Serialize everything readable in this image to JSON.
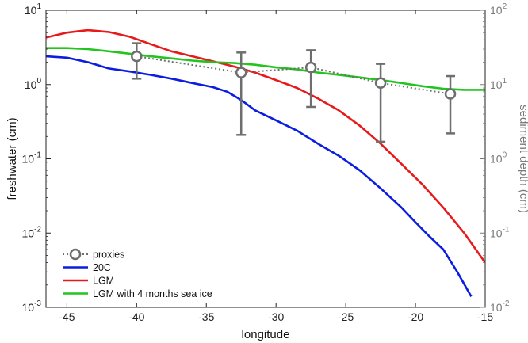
{
  "chart_data": {
    "type": "line",
    "xlabel": "longitude",
    "ylabel": "freshwater (cm)",
    "ylabel_right": "sediment depth (cm)",
    "xlim": [
      -46.5,
      -15
    ],
    "ylim": [
      0.001,
      10
    ],
    "ylim_right": [
      0.01,
      100
    ],
    "yscale": "log",
    "grid": false,
    "legend_position": "bottom-left",
    "x_ticks": [
      -45,
      -40,
      -35,
      -30,
      -25,
      -20,
      -15
    ],
    "x_tick_labels": [
      "-45",
      "-40",
      "-35",
      "-30",
      "-25",
      "-20",
      "-15"
    ],
    "y_ticks": [
      0.001,
      0.01,
      0.1,
      1,
      10
    ],
    "y_tick_labels": [
      {
        "base": "10",
        "exp": "-3"
      },
      {
        "base": "10",
        "exp": "-2"
      },
      {
        "base": "10",
        "exp": "-1"
      },
      {
        "base": "10",
        "exp": "0"
      },
      {
        "base": "10",
        "exp": "1"
      }
    ],
    "y_ticks_right": [
      0.01,
      0.1,
      1,
      10,
      100
    ],
    "y_tick_labels_right": [
      {
        "base": "10",
        "exp": "-2"
      },
      {
        "base": "10",
        "exp": "-1"
      },
      {
        "base": "10",
        "exp": "0"
      },
      {
        "base": "10",
        "exp": "1"
      },
      {
        "base": "10",
        "exp": "2"
      }
    ],
    "series": [
      {
        "name": "20C",
        "color": "#0b1ee0",
        "x": [
          -46.5,
          -45,
          -43.5,
          -42,
          -40.5,
          -39,
          -37.5,
          -36,
          -34.5,
          -33.5,
          -32.5,
          -31.5,
          -30,
          -28.5,
          -27,
          -25.5,
          -24,
          -22.5,
          -21,
          -20,
          -19,
          -18,
          -17,
          -16
        ],
        "y": [
          2.4,
          2.3,
          2.0,
          1.65,
          1.5,
          1.35,
          1.2,
          1.05,
          0.92,
          0.8,
          0.62,
          0.45,
          0.33,
          0.24,
          0.16,
          0.11,
          0.07,
          0.04,
          0.022,
          0.014,
          0.009,
          0.006,
          0.003,
          0.0014
        ]
      },
      {
        "name": "LGM",
        "color": "#e8191a",
        "x": [
          -46.5,
          -45,
          -43.5,
          -42,
          -40.5,
          -39,
          -37.5,
          -36,
          -34.5,
          -33,
          -31.5,
          -30,
          -28.5,
          -27,
          -25.5,
          -24,
          -22.5,
          -21,
          -19.5,
          -18,
          -16.5,
          -15
        ],
        "y": [
          4.3,
          5.0,
          5.4,
          5.1,
          4.4,
          3.5,
          2.8,
          2.4,
          2.05,
          1.75,
          1.45,
          1.15,
          0.9,
          0.65,
          0.45,
          0.28,
          0.16,
          0.085,
          0.045,
          0.022,
          0.01,
          0.004
        ]
      },
      {
        "name": "LGM with 4 months sea ice",
        "color": "#22c51e",
        "x": [
          -46.5,
          -45,
          -43.5,
          -42,
          -40.5,
          -39,
          -37.5,
          -36,
          -34.5,
          -33,
          -31.5,
          -30,
          -28.5,
          -27,
          -25.5,
          -24,
          -22.5,
          -21,
          -19.5,
          -18,
          -16.5,
          -15
        ],
        "y": [
          3.1,
          3.1,
          3.0,
          2.8,
          2.6,
          2.4,
          2.25,
          2.1,
          2.0,
          1.95,
          1.85,
          1.7,
          1.6,
          1.45,
          1.35,
          1.25,
          1.15,
          1.05,
          0.95,
          0.88,
          0.85,
          0.85
        ]
      }
    ],
    "proxies": {
      "name": "proxies",
      "axis": "right",
      "color": "#6e6e6e",
      "x": [
        -40,
        -32.5,
        -27.5,
        -22.5,
        -17.5
      ],
      "y": [
        24,
        14.5,
        17,
        10.5,
        7.5
      ],
      "err_low": [
        12,
        2.1,
        5,
        1.7,
        2.2
      ],
      "err_high": [
        36,
        27,
        29,
        19,
        13
      ]
    }
  }
}
